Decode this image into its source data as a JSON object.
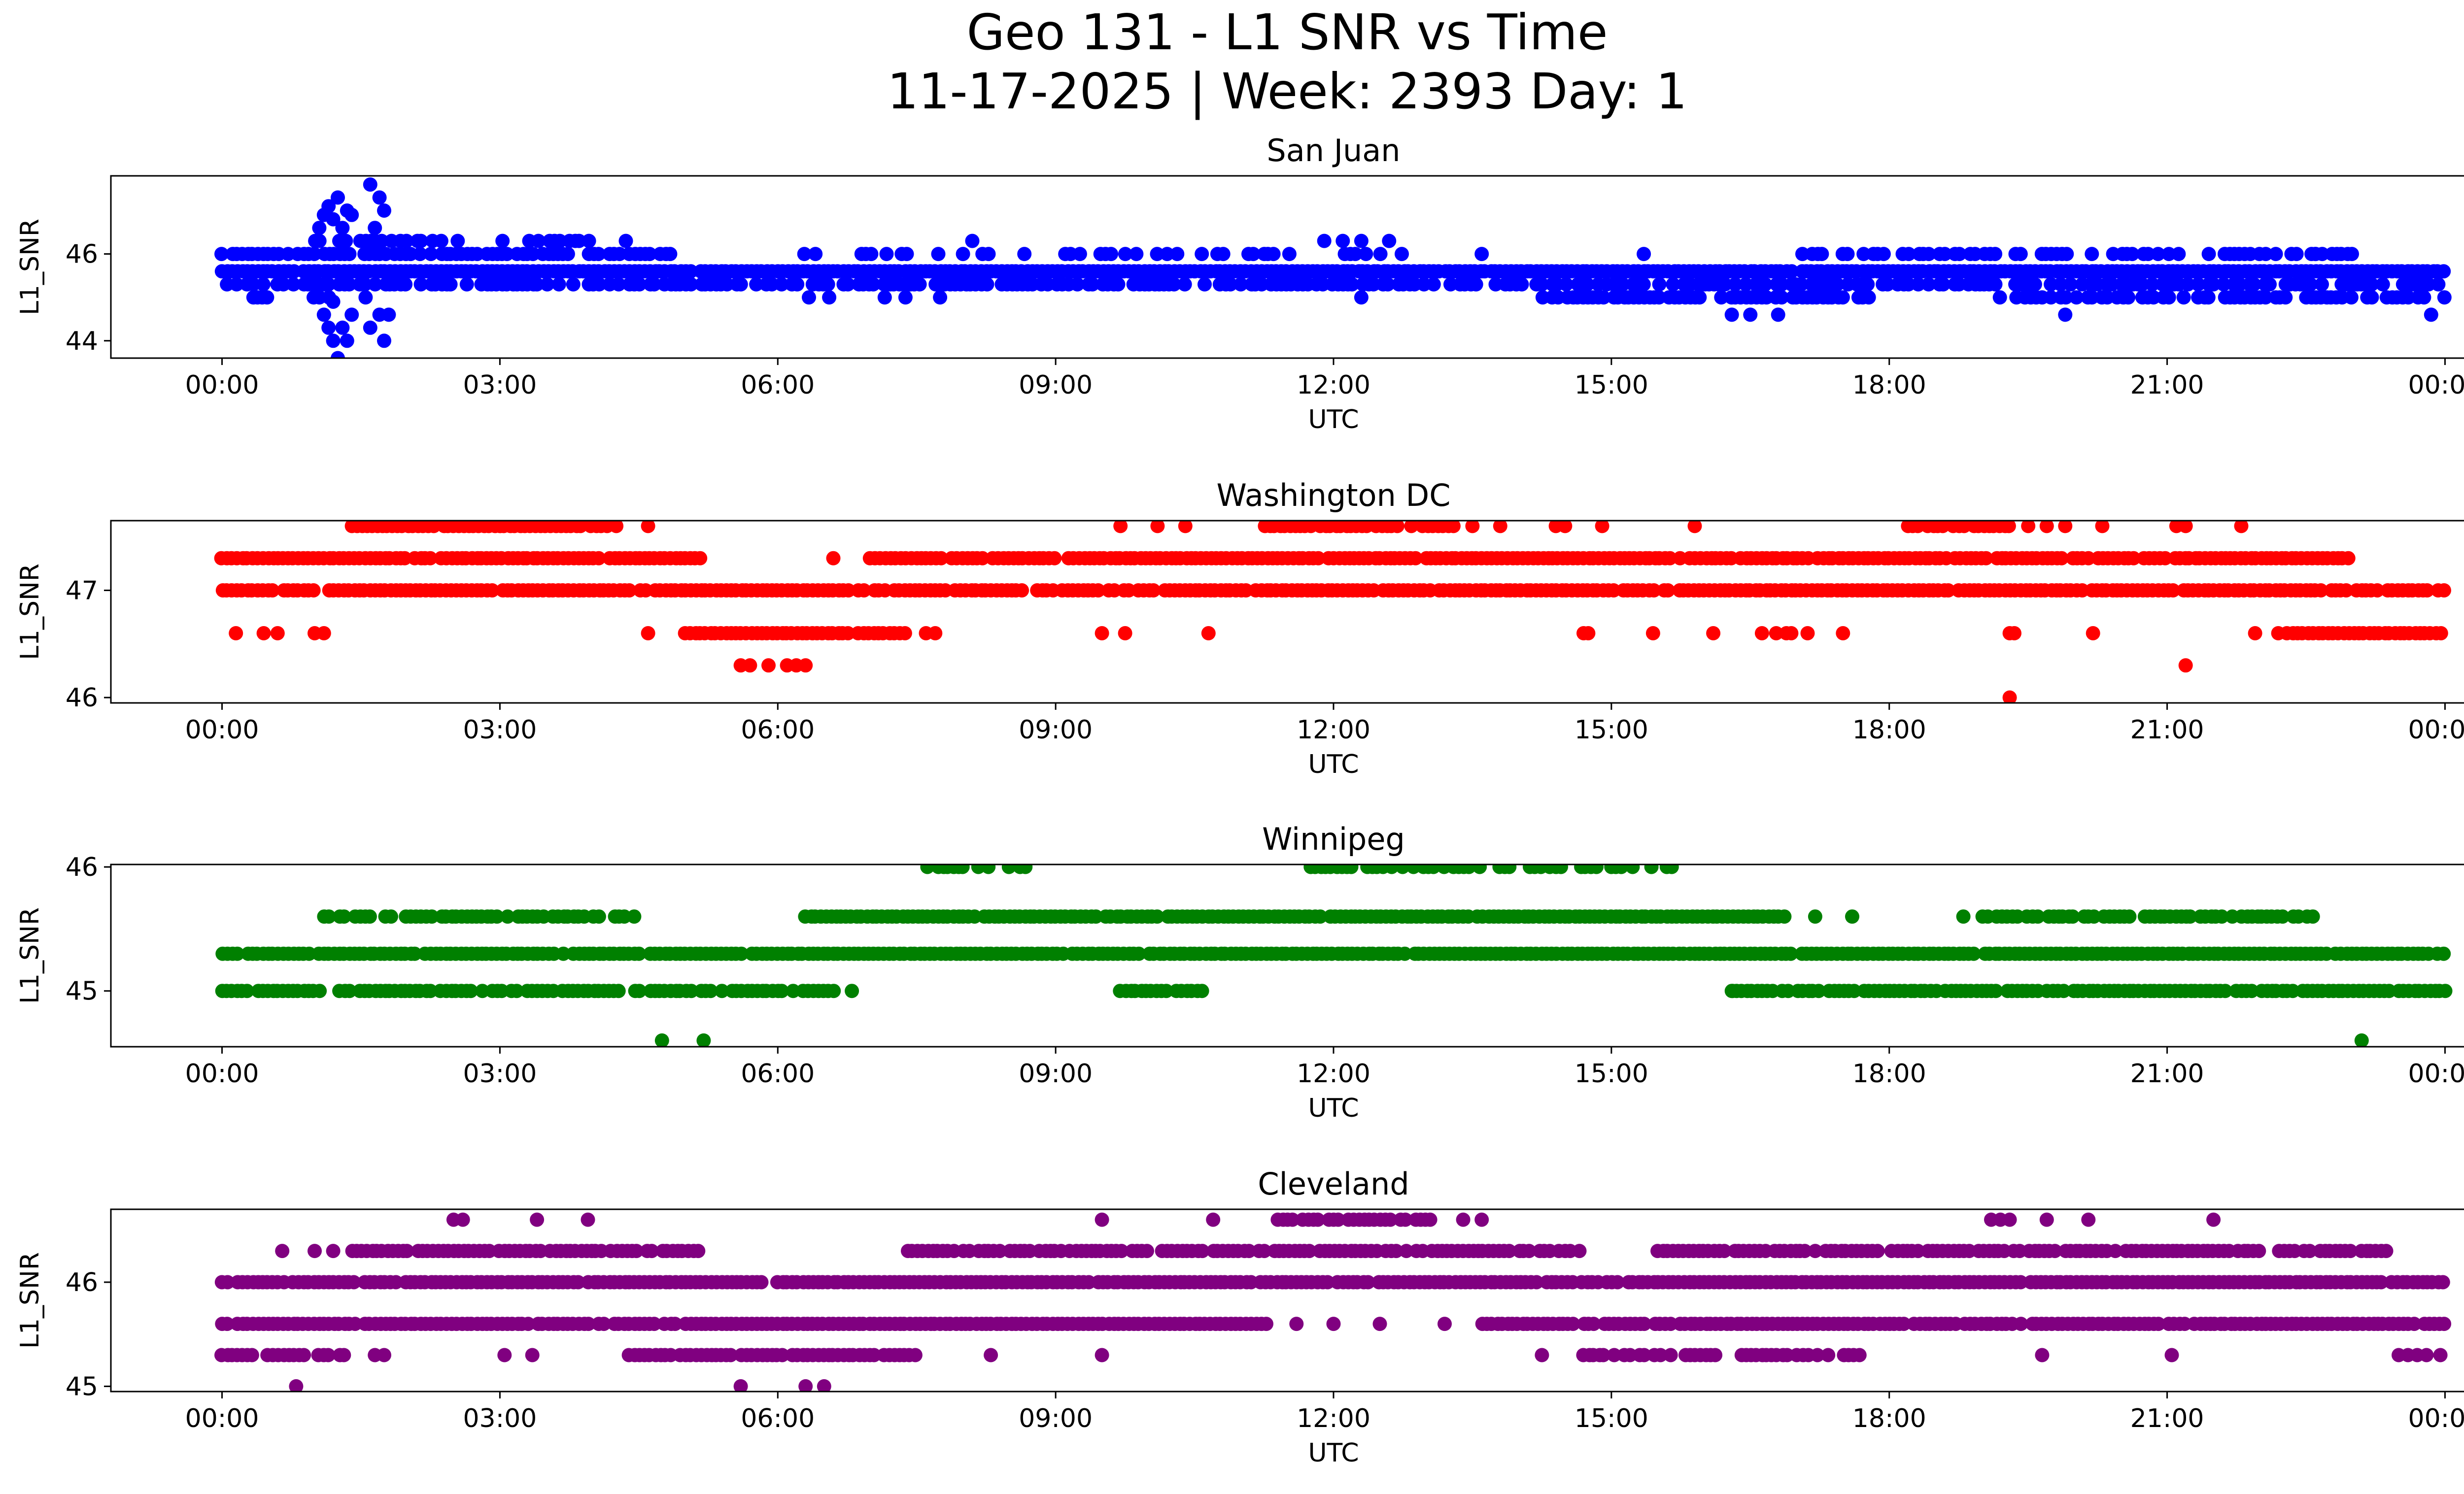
{
  "figure": {
    "title_line1": "Geo 131 - L1 SNR vs Time",
    "title_line2": "11-17-2025 | Week: 2393 Day: 1"
  },
  "chart_data": [
    {
      "type": "scatter",
      "title": "San Juan",
      "xlabel": "UTC",
      "ylabel": "L1_SNR",
      "color": "#0000ff",
      "xlim_hours": [
        -1.2,
        25.2
      ],
      "ylim": [
        43.6,
        47.8
      ],
      "yticks": [
        44,
        46
      ],
      "ytick_labels": [
        "44",
        "46"
      ],
      "xticks_hours": [
        0,
        3,
        6,
        9,
        12,
        15,
        18,
        21,
        24
      ],
      "xtick_labels": [
        "00:00",
        "03:00",
        "06:00",
        "09:00",
        "12:00",
        "15:00",
        "18:00",
        "21:00",
        "00:00"
      ],
      "bands": [
        {
          "y": 45.6,
          "start": 0.0,
          "end": 24.0,
          "density": 0.98
        },
        {
          "y": 45.3,
          "start": 0.0,
          "end": 24.0,
          "density": 0.65
        },
        {
          "y": 46.0,
          "start": 0.0,
          "end": 4.95,
          "density": 0.75
        },
        {
          "y": 46.0,
          "start": 5.8,
          "end": 13.2,
          "density": 0.35
        },
        {
          "y": 46.0,
          "start": 17.0,
          "end": 23.0,
          "density": 0.55
        },
        {
          "y": 45.0,
          "start": 14.2,
          "end": 17.8,
          "density": 0.75
        },
        {
          "y": 45.0,
          "start": 19.2,
          "end": 24.0,
          "density": 0.55
        },
        {
          "y": 45.0,
          "start": 0.0,
          "end": 1.2,
          "density": 0.3
        },
        {
          "y": 46.3,
          "start": 1.0,
          "end": 4.5,
          "density": 0.55
        },
        {
          "y": 45.0,
          "start": 6.0,
          "end": 8.0,
          "density": 0.2
        }
      ],
      "points": [
        {
          "x": 1.05,
          "y": 46.6
        },
        {
          "x": 1.1,
          "y": 46.9
        },
        {
          "x": 1.15,
          "y": 47.1
        },
        {
          "x": 1.2,
          "y": 46.8
        },
        {
          "x": 1.25,
          "y": 47.3
        },
        {
          "x": 1.3,
          "y": 46.6
        },
        {
          "x": 1.35,
          "y": 47.0
        },
        {
          "x": 1.4,
          "y": 46.9
        },
        {
          "x": 1.6,
          "y": 47.6
        },
        {
          "x": 1.65,
          "y": 46.6
        },
        {
          "x": 1.7,
          "y": 47.3
        },
        {
          "x": 1.75,
          "y": 47.0
        },
        {
          "x": 1.1,
          "y": 44.6
        },
        {
          "x": 1.15,
          "y": 44.3
        },
        {
          "x": 1.2,
          "y": 44.0
        },
        {
          "x": 1.25,
          "y": 43.6
        },
        {
          "x": 1.3,
          "y": 44.3
        },
        {
          "x": 1.35,
          "y": 44.0
        },
        {
          "x": 1.4,
          "y": 44.6
        },
        {
          "x": 1.6,
          "y": 44.3
        },
        {
          "x": 1.7,
          "y": 44.6
        },
        {
          "x": 1.75,
          "y": 44.0
        },
        {
          "x": 1.8,
          "y": 44.6
        },
        {
          "x": 1.2,
          "y": 44.9
        },
        {
          "x": 1.55,
          "y": 45.0
        },
        {
          "x": 8.1,
          "y": 46.3
        },
        {
          "x": 11.9,
          "y": 46.3
        },
        {
          "x": 12.1,
          "y": 46.3
        },
        {
          "x": 12.3,
          "y": 46.3
        },
        {
          "x": 12.6,
          "y": 46.3
        },
        {
          "x": 16.3,
          "y": 44.6
        },
        {
          "x": 16.5,
          "y": 44.6
        },
        {
          "x": 16.8,
          "y": 44.6
        },
        {
          "x": 19.9,
          "y": 44.6
        },
        {
          "x": 23.85,
          "y": 44.6
        },
        {
          "x": 12.3,
          "y": 45.0
        },
        {
          "x": 15.35,
          "y": 46.0
        },
        {
          "x": 13.6,
          "y": 46.0
        },
        {
          "x": 22.6,
          "y": 46.0
        }
      ]
    },
    {
      "type": "scatter",
      "title": "Washington DC",
      "xlabel": "UTC",
      "ylabel": "L1_SNR",
      "color": "#ff0000",
      "xlim_hours": [
        -1.2,
        25.2
      ],
      "ylim": [
        45.95,
        47.65
      ],
      "yticks": [
        46,
        47
      ],
      "ytick_labels": [
        "46",
        "47"
      ],
      "xticks_hours": [
        0,
        3,
        6,
        9,
        12,
        15,
        18,
        21,
        24
      ],
      "xtick_labels": [
        "00:00",
        "03:00",
        "06:00",
        "09:00",
        "12:00",
        "15:00",
        "18:00",
        "21:00",
        "00:00"
      ],
      "bands": [
        {
          "y": 47.3,
          "start": 0.0,
          "end": 5.2,
          "density": 0.98
        },
        {
          "y": 47.3,
          "start": 7.0,
          "end": 23.0,
          "density": 0.95
        },
        {
          "y": 47.0,
          "start": 0.0,
          "end": 24.0,
          "density": 0.95
        },
        {
          "y": 47.6,
          "start": 1.4,
          "end": 4.3,
          "density": 0.95
        },
        {
          "y": 47.6,
          "start": 11.2,
          "end": 13.3,
          "density": 0.9
        },
        {
          "y": 47.6,
          "start": 18.2,
          "end": 19.3,
          "density": 0.75
        },
        {
          "y": 46.6,
          "start": 5.0,
          "end": 7.4,
          "density": 0.95
        },
        {
          "y": 46.6,
          "start": 22.3,
          "end": 24.0,
          "density": 0.95
        },
        {
          "y": 46.6,
          "start": 16.4,
          "end": 17.2,
          "density": 0.5
        }
      ],
      "points": [
        {
          "x": 4.6,
          "y": 47.6
        },
        {
          "x": 9.7,
          "y": 47.6
        },
        {
          "x": 10.1,
          "y": 47.6
        },
        {
          "x": 10.4,
          "y": 47.6
        },
        {
          "x": 13.5,
          "y": 47.6
        },
        {
          "x": 13.8,
          "y": 47.6
        },
        {
          "x": 14.4,
          "y": 47.6
        },
        {
          "x": 14.5,
          "y": 47.6
        },
        {
          "x": 14.9,
          "y": 47.6
        },
        {
          "x": 15.9,
          "y": 47.6
        },
        {
          "x": 19.5,
          "y": 47.6
        },
        {
          "x": 19.7,
          "y": 47.6
        },
        {
          "x": 19.9,
          "y": 47.6
        },
        {
          "x": 20.3,
          "y": 47.6
        },
        {
          "x": 21.1,
          "y": 47.6
        },
        {
          "x": 21.2,
          "y": 47.6
        },
        {
          "x": 21.8,
          "y": 47.6
        },
        {
          "x": 6.6,
          "y": 47.3
        },
        {
          "x": 0.15,
          "y": 46.6
        },
        {
          "x": 0.45,
          "y": 46.6
        },
        {
          "x": 0.6,
          "y": 46.6
        },
        {
          "x": 1.0,
          "y": 46.6
        },
        {
          "x": 1.1,
          "y": 46.6
        },
        {
          "x": 4.6,
          "y": 46.6
        },
        {
          "x": 7.6,
          "y": 46.6
        },
        {
          "x": 7.7,
          "y": 46.6
        },
        {
          "x": 9.5,
          "y": 46.6
        },
        {
          "x": 9.75,
          "y": 46.6
        },
        {
          "x": 10.65,
          "y": 46.6
        },
        {
          "x": 14.7,
          "y": 46.6
        },
        {
          "x": 14.75,
          "y": 46.6
        },
        {
          "x": 15.45,
          "y": 46.6
        },
        {
          "x": 16.1,
          "y": 46.6
        },
        {
          "x": 17.5,
          "y": 46.6
        },
        {
          "x": 19.3,
          "y": 46.6
        },
        {
          "x": 19.35,
          "y": 46.6
        },
        {
          "x": 20.2,
          "y": 46.6
        },
        {
          "x": 21.95,
          "y": 46.6
        },
        {
          "x": 22.2,
          "y": 46.6
        },
        {
          "x": 5.6,
          "y": 46.3
        },
        {
          "x": 5.7,
          "y": 46.3
        },
        {
          "x": 5.9,
          "y": 46.3
        },
        {
          "x": 6.1,
          "y": 46.3
        },
        {
          "x": 6.2,
          "y": 46.3
        },
        {
          "x": 6.3,
          "y": 46.3
        },
        {
          "x": 21.2,
          "y": 46.3
        },
        {
          "x": 19.3,
          "y": 46.0
        }
      ]
    },
    {
      "type": "scatter",
      "title": "Winnipeg",
      "xlabel": "UTC",
      "ylabel": "L1_SNR",
      "color": "#008000",
      "xlim_hours": [
        -1.2,
        25.2
      ],
      "ylim": [
        44.55,
        46.02
      ],
      "yticks": [
        45,
        46
      ],
      "ytick_labels": [
        "45",
        "46"
      ],
      "xticks_hours": [
        0,
        3,
        6,
        9,
        12,
        15,
        18,
        21,
        24
      ],
      "xtick_labels": [
        "00:00",
        "03:00",
        "06:00",
        "09:00",
        "12:00",
        "15:00",
        "18:00",
        "21:00",
        "00:00"
      ],
      "bands": [
        {
          "y": 45.3,
          "start": 0.0,
          "end": 24.0,
          "density": 0.97
        },
        {
          "y": 45.0,
          "start": 0.0,
          "end": 6.6,
          "density": 0.8
        },
        {
          "y": 45.0,
          "start": 16.3,
          "end": 24.0,
          "density": 0.9
        },
        {
          "y": 45.0,
          "start": 9.7,
          "end": 10.6,
          "density": 0.95
        },
        {
          "y": 45.6,
          "start": 1.1,
          "end": 4.6,
          "density": 0.7
        },
        {
          "y": 45.6,
          "start": 6.3,
          "end": 16.9,
          "density": 0.97
        },
        {
          "y": 45.6,
          "start": 19.0,
          "end": 22.6,
          "density": 0.8
        },
        {
          "y": 46.0,
          "start": 7.4,
          "end": 8.8,
          "density": 0.55
        },
        {
          "y": 46.0,
          "start": 11.7,
          "end": 15.7,
          "density": 0.6
        }
      ],
      "points": [
        {
          "x": 6.8,
          "y": 45.0
        },
        {
          "x": 16.3,
          "y": 45.0
        },
        {
          "x": 17.2,
          "y": 45.6
        },
        {
          "x": 17.6,
          "y": 45.6
        },
        {
          "x": 18.8,
          "y": 45.6
        },
        {
          "x": 4.75,
          "y": 44.6
        },
        {
          "x": 5.2,
          "y": 44.6
        },
        {
          "x": 23.1,
          "y": 44.6
        }
      ]
    },
    {
      "type": "scatter",
      "title": "Cleveland",
      "xlabel": "UTC",
      "ylabel": "L1_SNR",
      "color": "#800080",
      "xlim_hours": [
        -1.2,
        25.2
      ],
      "ylim": [
        44.95,
        46.7
      ],
      "yticks": [
        45,
        46
      ],
      "ytick_labels": [
        "45",
        "46"
      ],
      "xticks_hours": [
        0,
        3,
        6,
        9,
        12,
        15,
        18,
        21,
        24
      ],
      "xtick_labels": [
        "00:00",
        "03:00",
        "06:00",
        "09:00",
        "12:00",
        "15:00",
        "18:00",
        "21:00",
        "00:00"
      ],
      "bands": [
        {
          "y": 46.0,
          "start": 0.0,
          "end": 24.0,
          "density": 0.97
        },
        {
          "y": 45.6,
          "start": 0.0,
          "end": 11.3,
          "density": 0.95
        },
        {
          "y": 45.6,
          "start": 13.6,
          "end": 24.0,
          "density": 0.95
        },
        {
          "y": 45.3,
          "start": 0.0,
          "end": 1.4,
          "density": 0.8
        },
        {
          "y": 45.3,
          "start": 4.4,
          "end": 7.5,
          "density": 0.9
        },
        {
          "y": 45.3,
          "start": 14.7,
          "end": 17.7,
          "density": 0.7
        },
        {
          "y": 46.3,
          "start": 1.4,
          "end": 5.2,
          "density": 0.9
        },
        {
          "y": 46.3,
          "start": 7.4,
          "end": 14.7,
          "density": 0.9
        },
        {
          "y": 46.3,
          "start": 15.5,
          "end": 23.4,
          "density": 0.8
        },
        {
          "y": 46.6,
          "start": 11.4,
          "end": 13.1,
          "density": 0.9
        }
      ],
      "points": [
        {
          "x": 2.5,
          "y": 46.6
        },
        {
          "x": 2.6,
          "y": 46.6
        },
        {
          "x": 3.4,
          "y": 46.6
        },
        {
          "x": 3.95,
          "y": 46.6
        },
        {
          "x": 9.5,
          "y": 46.6
        },
        {
          "x": 10.7,
          "y": 46.6
        },
        {
          "x": 13.4,
          "y": 46.6
        },
        {
          "x": 13.6,
          "y": 46.6
        },
        {
          "x": 19.1,
          "y": 46.6
        },
        {
          "x": 19.2,
          "y": 46.6
        },
        {
          "x": 19.3,
          "y": 46.6
        },
        {
          "x": 19.7,
          "y": 46.6
        },
        {
          "x": 20.15,
          "y": 46.6
        },
        {
          "x": 21.5,
          "y": 46.6
        },
        {
          "x": 0.65,
          "y": 46.3
        },
        {
          "x": 1.0,
          "y": 46.3
        },
        {
          "x": 1.2,
          "y": 46.3
        },
        {
          "x": 11.6,
          "y": 45.6
        },
        {
          "x": 12.0,
          "y": 45.6
        },
        {
          "x": 12.5,
          "y": 45.6
        },
        {
          "x": 13.2,
          "y": 45.6
        },
        {
          "x": 1.65,
          "y": 45.3
        },
        {
          "x": 1.75,
          "y": 45.3
        },
        {
          "x": 3.05,
          "y": 45.3
        },
        {
          "x": 3.35,
          "y": 45.3
        },
        {
          "x": 8.3,
          "y": 45.3
        },
        {
          "x": 9.5,
          "y": 45.3
        },
        {
          "x": 14.25,
          "y": 45.3
        },
        {
          "x": 19.65,
          "y": 45.3
        },
        {
          "x": 21.05,
          "y": 45.3
        },
        {
          "x": 23.5,
          "y": 45.3
        },
        {
          "x": 23.6,
          "y": 45.3
        },
        {
          "x": 23.7,
          "y": 45.3
        },
        {
          "x": 23.8,
          "y": 45.3
        },
        {
          "x": 23.95,
          "y": 45.3
        },
        {
          "x": 0.8,
          "y": 45.0
        },
        {
          "x": 5.6,
          "y": 45.0
        },
        {
          "x": 6.3,
          "y": 45.0
        },
        {
          "x": 6.5,
          "y": 45.0
        }
      ]
    }
  ]
}
